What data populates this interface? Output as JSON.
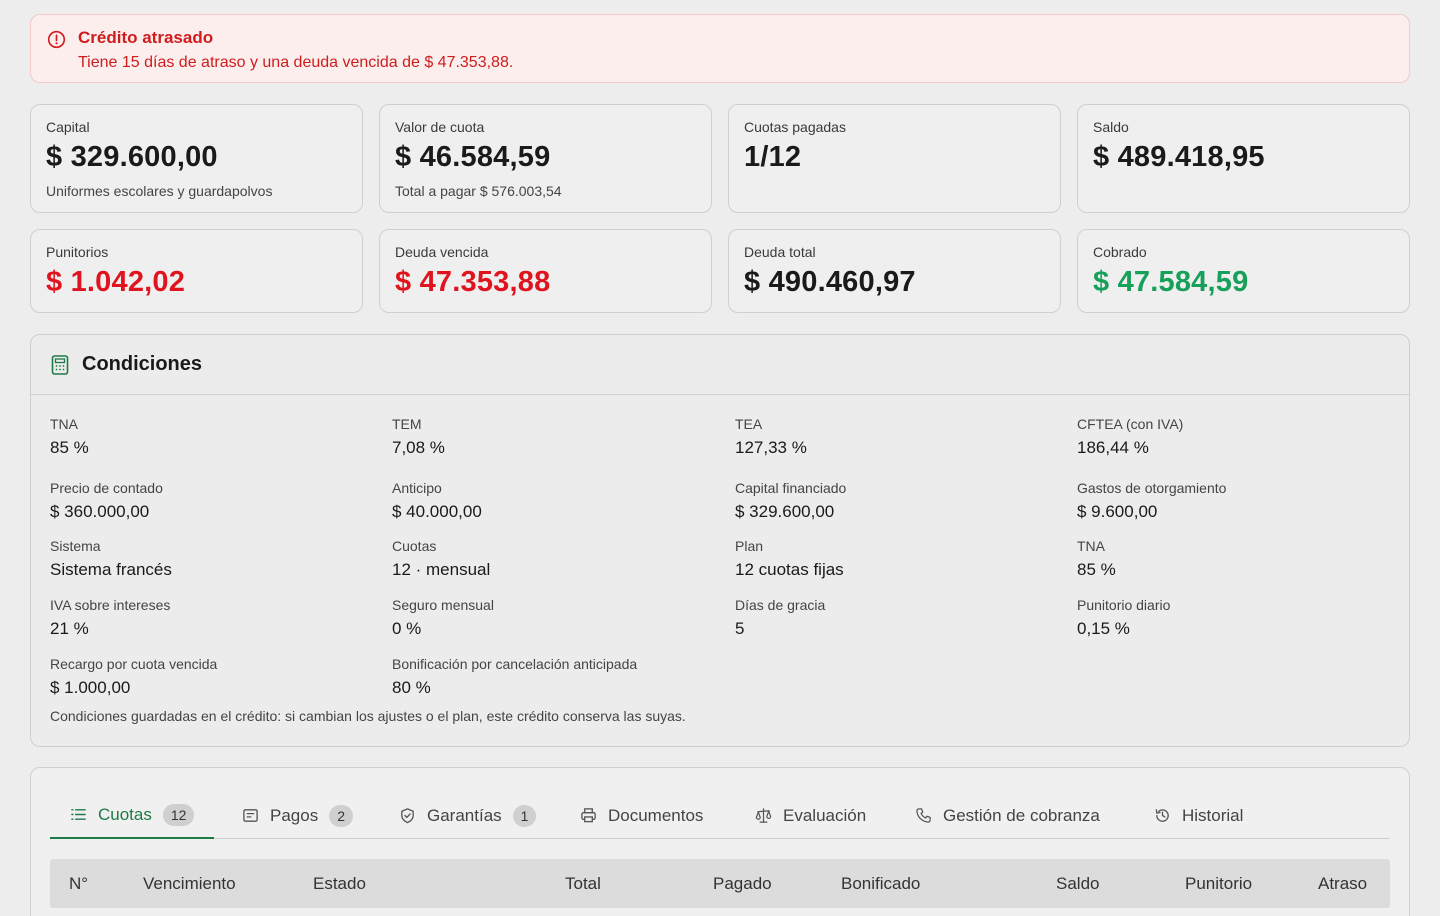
{
  "alert": {
    "title": "Crédito atrasado",
    "message": "Tiene 15 días de atraso y una deuda vencida de $ 47.353,88."
  },
  "summary_cards": [
    {
      "label": "Capital",
      "value": "$ 329.600,00",
      "sub": "Uniformes escolares y guardapolvos"
    },
    {
      "label": "Valor de cuota",
      "value": "$ 46.584,59",
      "sub": "Total a pagar $ 576.003,54"
    },
    {
      "label": "Cuotas pagadas",
      "value": "1/12"
    },
    {
      "label": "Saldo",
      "value": "$ 489.418,95"
    },
    {
      "label": "Punitorios",
      "value": "$ 1.042,02"
    },
    {
      "label": "Deuda vencida",
      "value": "$ 47.353,88"
    },
    {
      "label": "Deuda total",
      "value": "$ 490.460,97"
    },
    {
      "label": "Cobrado",
      "value": "$ 47.584,59"
    }
  ],
  "colors": {
    "danger": "#e0141e",
    "success": "#16a05a",
    "accent": "#1e7a46"
  },
  "conditions": {
    "title": "Condiciones",
    "fields": [
      {
        "label": "TNA",
        "value": "85 %"
      },
      {
        "label": "TEM",
        "value": "7,08 %"
      },
      {
        "label": "TEA",
        "value": "127,33 %"
      },
      {
        "label": "CFTEA (con IVA)",
        "value": "186,44 %"
      },
      {
        "label": "Precio de contado",
        "value": "$ 360.000,00"
      },
      {
        "label": "Anticipo",
        "value": "$ 40.000,00"
      },
      {
        "label": "Capital financiado",
        "value": "$ 329.600,00"
      },
      {
        "label": "Gastos de otorgamiento",
        "value": "$ 9.600,00"
      },
      {
        "label": "Sistema",
        "value": "Sistema francés"
      },
      {
        "label": "Cuotas",
        "value": "12 · mensual"
      },
      {
        "label": "Plan",
        "value": "12 cuotas fijas"
      },
      {
        "label": "TNA",
        "value": "85 %"
      },
      {
        "label": "IVA sobre intereses",
        "value": "21 %"
      },
      {
        "label": "Seguro mensual",
        "value": "0 %"
      },
      {
        "label": "Días de gracia",
        "value": "5"
      },
      {
        "label": "Punitorio diario",
        "value": "0,15 %"
      },
      {
        "label": "Recargo por cuota vencida",
        "value": "$ 1.000,00"
      },
      {
        "label": "Bonificación por cancelación anticipada",
        "value": "80 %"
      }
    ],
    "note": "Condiciones guardadas en el crédito: si cambian los ajustes o el plan, este crédito conserva las suyas."
  },
  "tabs": [
    {
      "label": "Cuotas",
      "badge": "12",
      "icon": "list-icon",
      "active": true
    },
    {
      "label": "Pagos",
      "badge": "2",
      "icon": "receipt-icon"
    },
    {
      "label": "Garantías",
      "badge": "1",
      "icon": "shield-icon"
    },
    {
      "label": "Documentos",
      "icon": "printer-icon"
    },
    {
      "label": "Evaluación",
      "icon": "scale-icon"
    },
    {
      "label": "Gestión de cobranza",
      "icon": "phone-icon"
    },
    {
      "label": "Historial",
      "icon": "history-icon"
    }
  ],
  "table": {
    "headers": [
      "N°",
      "Vencimiento",
      "Estado",
      "Total",
      "Pagado",
      "Bonificado",
      "Saldo",
      "Punitorio",
      "Atraso"
    ]
  }
}
